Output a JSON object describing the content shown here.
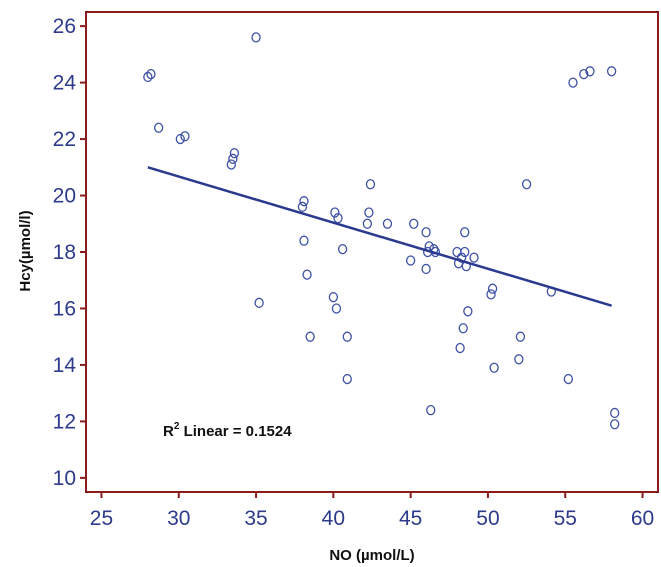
{
  "chart_data": {
    "type": "scatter",
    "title": "",
    "xlabel": "NO (µmol/L)",
    "ylabel": "Hcy(µmol/l)",
    "xlim": [
      24,
      61
    ],
    "ylim": [
      9.5,
      26.5
    ],
    "xticks": [
      25,
      30,
      35,
      40,
      45,
      50,
      55,
      60
    ],
    "yticks": [
      10,
      12,
      14,
      16,
      18,
      20,
      22,
      24,
      26
    ],
    "grid": false,
    "colors": {
      "frame": "#8b1a1a",
      "points": "#3f51a5",
      "line": "#2b3a8f",
      "ticks": "#2e3a8c"
    },
    "annotation": {
      "prefix": "R",
      "sup": "2",
      "text": " Linear = 0.1524"
    },
    "fit_line": {
      "x": [
        28.0,
        58.0
      ],
      "y": [
        21.0,
        16.1
      ]
    },
    "points": [
      [
        28.0,
        24.2
      ],
      [
        28.2,
        24.3
      ],
      [
        28.7,
        22.4
      ],
      [
        30.1,
        22.0
      ],
      [
        30.4,
        22.1
      ],
      [
        33.4,
        21.1
      ],
      [
        33.5,
        21.3
      ],
      [
        33.6,
        21.5
      ],
      [
        35.0,
        25.6
      ],
      [
        35.2,
        16.2
      ],
      [
        38.0,
        19.6
      ],
      [
        38.1,
        19.8
      ],
      [
        38.1,
        18.4
      ],
      [
        38.3,
        17.2
      ],
      [
        38.5,
        15.0
      ],
      [
        40.0,
        16.4
      ],
      [
        40.1,
        19.4
      ],
      [
        40.3,
        19.2
      ],
      [
        40.2,
        16.0
      ],
      [
        40.6,
        18.1
      ],
      [
        40.9,
        15.0
      ],
      [
        40.9,
        13.5
      ],
      [
        42.2,
        19.0
      ],
      [
        42.3,
        19.4
      ],
      [
        42.4,
        20.4
      ],
      [
        43.5,
        19.0
      ],
      [
        45.0,
        17.7
      ],
      [
        45.2,
        19.0
      ],
      [
        46.0,
        17.4
      ],
      [
        46.0,
        18.7
      ],
      [
        46.1,
        18.0
      ],
      [
        46.2,
        18.2
      ],
      [
        46.3,
        12.4
      ],
      [
        46.5,
        18.1
      ],
      [
        46.6,
        18.0
      ],
      [
        48.0,
        18.0
      ],
      [
        48.1,
        17.6
      ],
      [
        48.2,
        14.6
      ],
      [
        48.3,
        17.8
      ],
      [
        48.4,
        15.3
      ],
      [
        48.5,
        18.7
      ],
      [
        48.5,
        18.0
      ],
      [
        48.6,
        17.5
      ],
      [
        48.7,
        15.9
      ],
      [
        49.1,
        17.8
      ],
      [
        50.2,
        16.5
      ],
      [
        50.3,
        16.7
      ],
      [
        50.4,
        13.9
      ],
      [
        52.1,
        15.0
      ],
      [
        52.0,
        14.2
      ],
      [
        52.5,
        20.4
      ],
      [
        54.1,
        16.6
      ],
      [
        55.2,
        13.5
      ],
      [
        55.5,
        24.0
      ],
      [
        56.2,
        24.3
      ],
      [
        56.6,
        24.4
      ],
      [
        58.0,
        24.4
      ],
      [
        58.2,
        12.3
      ],
      [
        58.2,
        11.9
      ]
    ]
  }
}
